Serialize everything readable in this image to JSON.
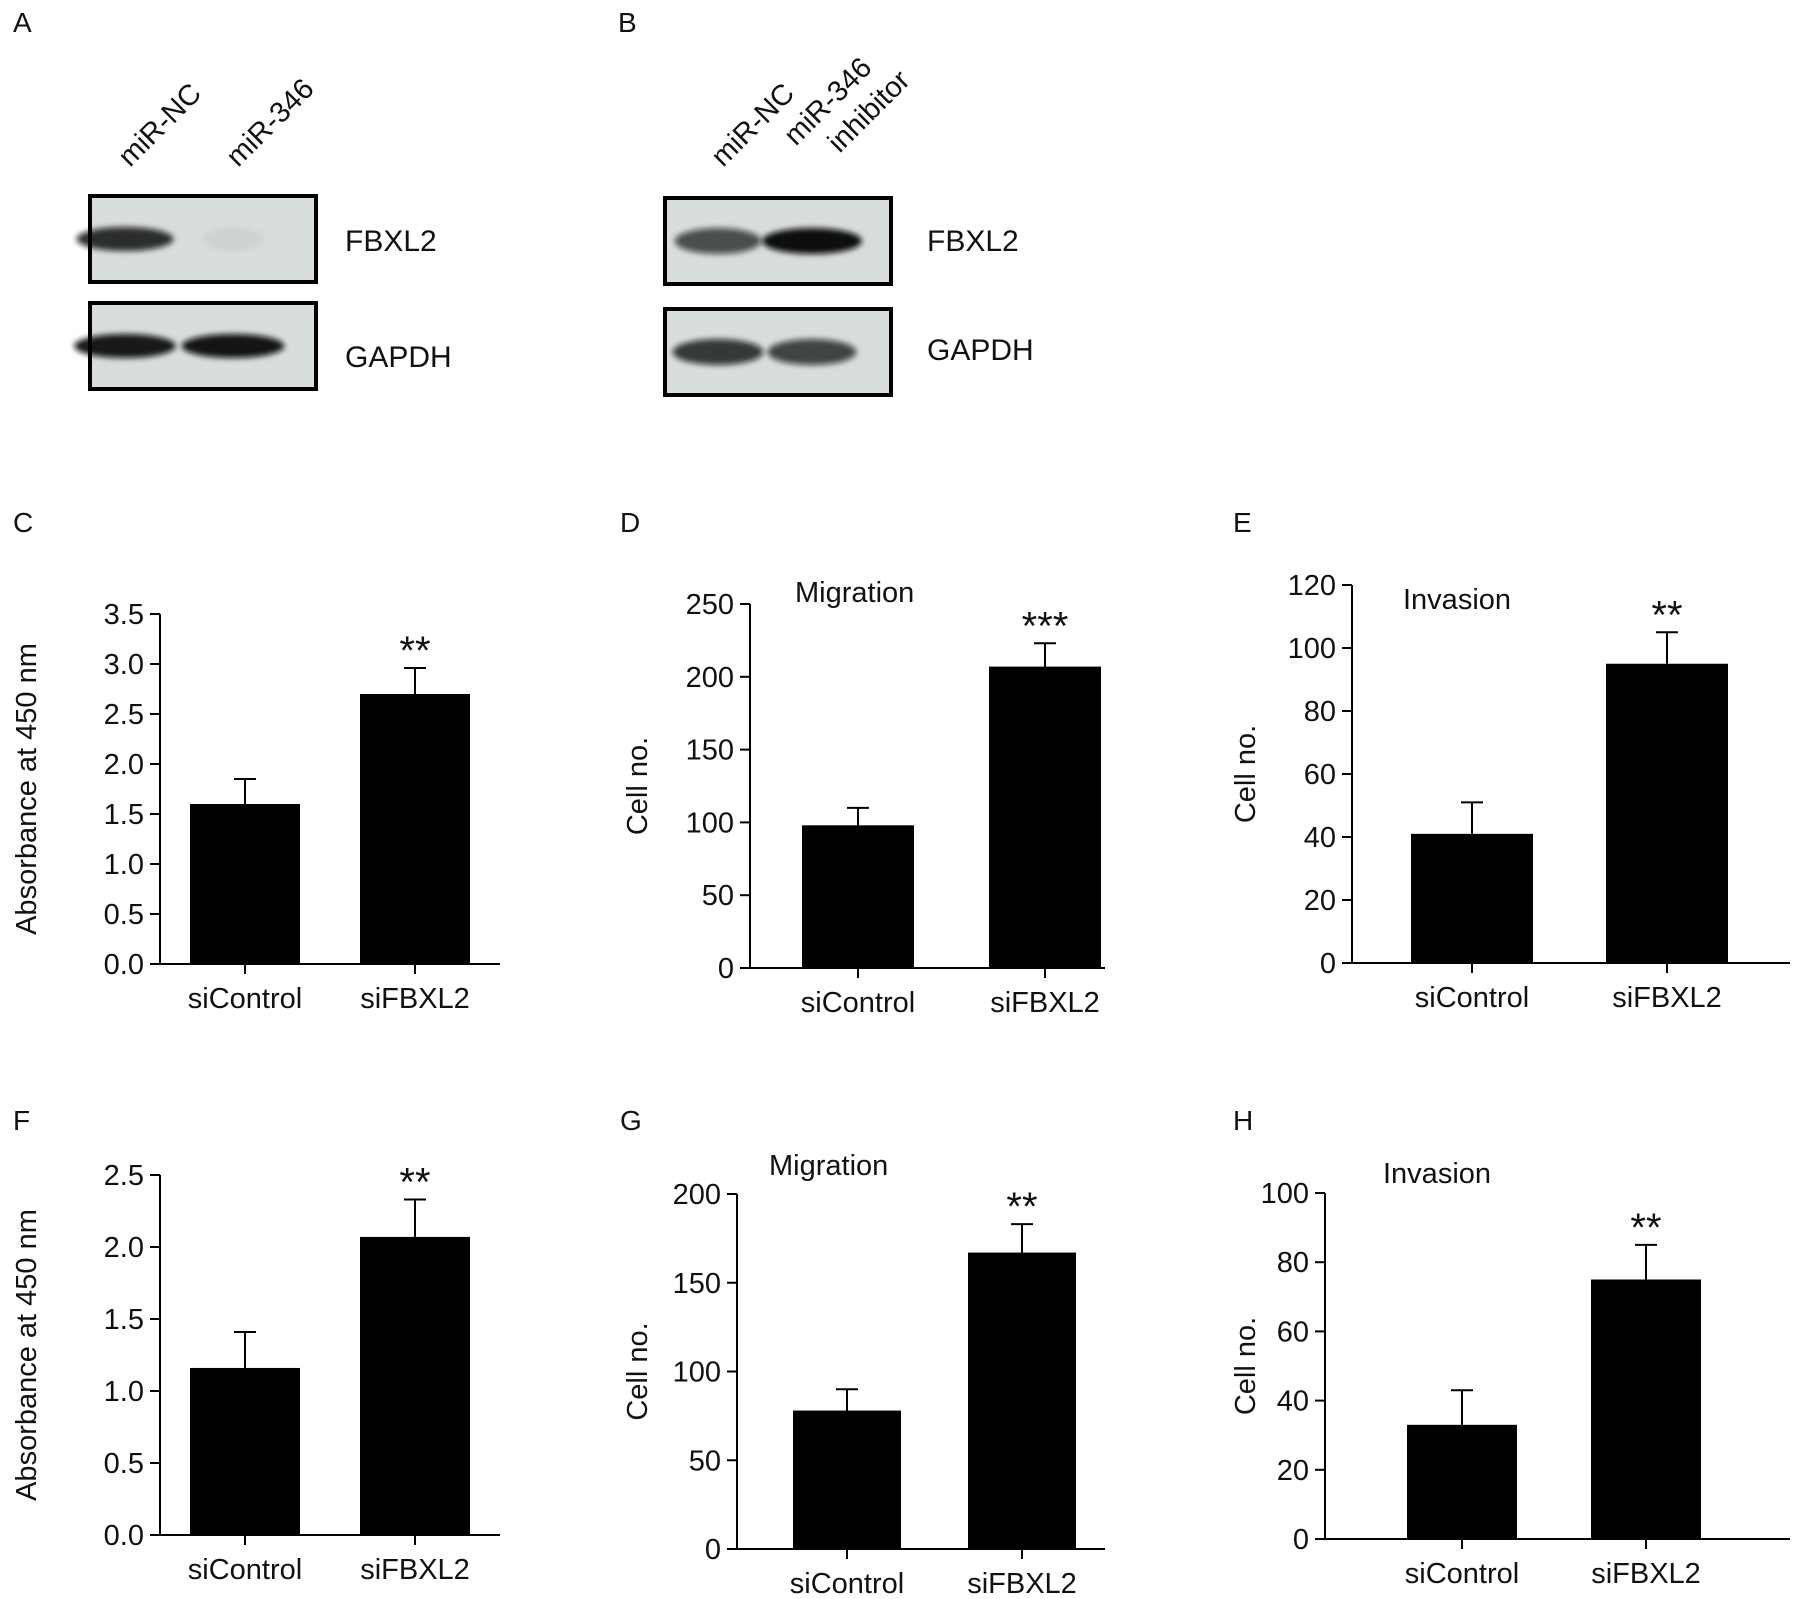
{
  "blots": [
    {
      "panel": "A",
      "lanes": [
        "miR-NC",
        "miR-346"
      ],
      "rows": [
        {
          "label": "FBXL2",
          "intensity": [
            0.85,
            0.05
          ]
        },
        {
          "label": "GAPDH",
          "intensity": [
            0.95,
            0.97
          ]
        }
      ]
    },
    {
      "panel": "B",
      "lanes": [
        "miR-NC",
        "miR-346 inhibitor"
      ],
      "rows": [
        {
          "label": "FBXL2",
          "intensity": [
            0.7,
            1.0
          ]
        },
        {
          "label": "GAPDH",
          "intensity": [
            0.8,
            0.75
          ]
        }
      ]
    }
  ],
  "chart_data": [
    {
      "panel": "C",
      "type": "bar",
      "title": "",
      "xlabel": "",
      "ylabel": "Absorbance at 450 nm",
      "categories": [
        "siControl",
        "siFBXL2"
      ],
      "values": [
        1.6,
        2.7
      ],
      "errors": [
        0.25,
        0.26
      ],
      "ylim": [
        0,
        3.5
      ],
      "yticks": [
        "0.0",
        "0.5",
        "1.0",
        "1.5",
        "2.0",
        "2.5",
        "3.0",
        "3.5"
      ],
      "significance": [
        "",
        "**"
      ],
      "grid": false
    },
    {
      "panel": "D",
      "type": "bar",
      "title": "Migration",
      "xlabel": "",
      "ylabel": "Cell no.",
      "categories": [
        "siControl",
        "siFBXL2"
      ],
      "values": [
        98,
        207
      ],
      "errors": [
        12,
        16
      ],
      "ylim": [
        0,
        250
      ],
      "yticks": [
        "0",
        "50",
        "100",
        "150",
        "200",
        "250"
      ],
      "significance": [
        "",
        "***"
      ],
      "grid": false
    },
    {
      "panel": "E",
      "type": "bar",
      "title": "Invasion",
      "xlabel": "",
      "ylabel": "Cell no.",
      "categories": [
        "siControl",
        "siFBXL2"
      ],
      "values": [
        41,
        95
      ],
      "errors": [
        10,
        10
      ],
      "ylim": [
        0,
        120
      ],
      "yticks": [
        "0",
        "20",
        "40",
        "60",
        "80",
        "100",
        "120"
      ],
      "significance": [
        "",
        "**"
      ],
      "grid": false
    },
    {
      "panel": "F",
      "type": "bar",
      "title": "",
      "xlabel": "",
      "ylabel": "Absorbance at 450 nm",
      "categories": [
        "siControl",
        "siFBXL2"
      ],
      "values": [
        1.16,
        2.07
      ],
      "errors": [
        0.25,
        0.26
      ],
      "ylim": [
        0,
        2.5
      ],
      "yticks": [
        "0.0",
        "0.5",
        "1.0",
        "1.5",
        "2.0",
        "2.5"
      ],
      "significance": [
        "",
        "**"
      ],
      "grid": false
    },
    {
      "panel": "G",
      "type": "bar",
      "title": "Migration",
      "xlabel": "",
      "ylabel": "Cell no.",
      "categories": [
        "siControl",
        "siFBXL2"
      ],
      "values": [
        78,
        167
      ],
      "errors": [
        12,
        16
      ],
      "ylim": [
        0,
        200
      ],
      "yticks": [
        "0",
        "50",
        "100",
        "150",
        "200"
      ],
      "significance": [
        "",
        "**"
      ],
      "grid": false
    },
    {
      "panel": "H",
      "type": "bar",
      "title": "Invasion",
      "xlabel": "",
      "ylabel": "Cell no.",
      "categories": [
        "siControl",
        "siFBXL2"
      ],
      "values": [
        33,
        75
      ],
      "errors": [
        10,
        10
      ],
      "ylim": [
        0,
        100
      ],
      "yticks": [
        "0",
        "20",
        "40",
        "60",
        "80",
        "100"
      ],
      "significance": [
        "",
        "**"
      ],
      "grid": false
    }
  ]
}
